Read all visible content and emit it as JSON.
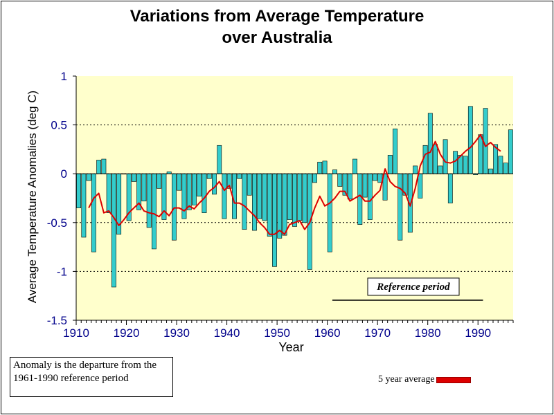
{
  "chart_data": {
    "type": "bar",
    "title": [
      "Variations from Average Temperature",
      "over Australia"
    ],
    "xlabel": "Year",
    "ylabel": "Average Temperature Anomalies (deg C)",
    "xlim": [
      1910,
      1997
    ],
    "ylim": [
      -1.5,
      1
    ],
    "xticks": [
      1910,
      1920,
      1930,
      1940,
      1950,
      1960,
      1970,
      1980,
      1990
    ],
    "xtick_labels": [
      "1910",
      "1920",
      "1930",
      "1940",
      "1950",
      "1960",
      "1970",
      "1980",
      "1990"
    ],
    "yticks": [
      1,
      0.5,
      0,
      -0.5,
      -1,
      -1.5
    ],
    "ytick_labels": [
      "1",
      "0.5",
      "0",
      "-0.5",
      "-1",
      "-1.5"
    ],
    "grid": "horizontal dotted",
    "years": [
      1910,
      1911,
      1912,
      1913,
      1914,
      1915,
      1916,
      1917,
      1918,
      1919,
      1920,
      1921,
      1922,
      1923,
      1924,
      1925,
      1926,
      1927,
      1928,
      1929,
      1930,
      1931,
      1932,
      1933,
      1934,
      1935,
      1936,
      1937,
      1938,
      1939,
      1940,
      1941,
      1942,
      1943,
      1944,
      1945,
      1946,
      1947,
      1948,
      1949,
      1950,
      1951,
      1952,
      1953,
      1954,
      1955,
      1956,
      1957,
      1958,
      1959,
      1960,
      1961,
      1962,
      1963,
      1964,
      1965,
      1966,
      1967,
      1968,
      1969,
      1970,
      1971,
      1972,
      1973,
      1974,
      1975,
      1976,
      1977,
      1978,
      1979,
      1980,
      1981,
      1982,
      1983,
      1984,
      1985,
      1986,
      1987,
      1988,
      1989,
      1990,
      1991,
      1992,
      1993,
      1994,
      1995,
      1996
    ],
    "series": [
      {
        "type": "bar",
        "color": "#33cccc",
        "values": [
          -0.35,
          -0.65,
          -0.07,
          -0.8,
          0.14,
          0.15,
          -0.4,
          -1.16,
          -0.62,
          0.0,
          -0.48,
          -0.08,
          -0.37,
          -0.28,
          -0.55,
          -0.77,
          -0.15,
          -0.47,
          0.02,
          -0.68,
          -0.17,
          -0.46,
          -0.37,
          -0.32,
          -0.23,
          -0.4,
          -0.05,
          -0.21,
          0.29,
          -0.46,
          -0.15,
          -0.46,
          -0.05,
          -0.57,
          -0.22,
          -0.58,
          -0.46,
          -0.48,
          -0.64,
          -0.95,
          -0.66,
          -0.63,
          -0.47,
          -0.54,
          -0.48,
          -0.5,
          -0.98,
          -0.09,
          0.12,
          0.13,
          -0.8,
          0.04,
          -0.13,
          -0.22,
          -0.26,
          0.15,
          -0.52,
          -0.24,
          -0.47,
          -0.07,
          -0.09,
          -0.27,
          0.19,
          0.46,
          -0.68,
          -0.22,
          -0.6,
          0.08,
          -0.25,
          0.29,
          0.62,
          0.3,
          0.08,
          0.35,
          -0.3,
          0.23,
          0.19,
          0.18,
          0.69,
          -0.01,
          0.4,
          0.67,
          0.05,
          0.3,
          0.18,
          0.11,
          0.45
        ]
      },
      {
        "name": "5 year average",
        "type": "line",
        "color": "#dd0000",
        "x": [
          1912,
          1913,
          1914,
          1915,
          1916,
          1917,
          1918,
          1919,
          1920,
          1921,
          1922,
          1923,
          1924,
          1925,
          1926,
          1927,
          1928,
          1929,
          1930,
          1931,
          1932,
          1933,
          1934,
          1935,
          1936,
          1937,
          1938,
          1939,
          1940,
          1941,
          1942,
          1943,
          1944,
          1945,
          1946,
          1947,
          1948,
          1949,
          1950,
          1951,
          1952,
          1953,
          1954,
          1955,
          1956,
          1957,
          1958,
          1959,
          1960,
          1961,
          1962,
          1963,
          1964,
          1965,
          1966,
          1967,
          1968,
          1969,
          1970,
          1971,
          1972,
          1973,
          1974,
          1975,
          1976,
          1977,
          1978,
          1979,
          1980,
          1981,
          1982,
          1983,
          1984,
          1985,
          1986,
          1987,
          1988,
          1989,
          1990,
          1991,
          1992,
          1993,
          1994
        ],
        "values": [
          -0.35,
          -0.25,
          -0.2,
          -0.4,
          -0.38,
          -0.45,
          -0.53,
          -0.47,
          -0.4,
          -0.35,
          -0.3,
          -0.38,
          -0.4,
          -0.41,
          -0.44,
          -0.38,
          -0.43,
          -0.35,
          -0.35,
          -0.38,
          -0.33,
          -0.36,
          -0.3,
          -0.25,
          -0.18,
          -0.14,
          -0.08,
          -0.17,
          -0.12,
          -0.3,
          -0.3,
          -0.33,
          -0.38,
          -0.43,
          -0.5,
          -0.55,
          -0.62,
          -0.62,
          -0.58,
          -0.62,
          -0.52,
          -0.5,
          -0.48,
          -0.57,
          -0.5,
          -0.35,
          -0.23,
          -0.33,
          -0.3,
          -0.25,
          -0.18,
          -0.18,
          -0.28,
          -0.25,
          -0.22,
          -0.28,
          -0.28,
          -0.22,
          -0.17,
          0.05,
          -0.08,
          -0.13,
          -0.15,
          -0.2,
          -0.33,
          -0.15,
          0.08,
          0.2,
          0.22,
          0.33,
          0.2,
          0.12,
          0.11,
          0.13,
          0.18,
          0.23,
          0.27,
          0.33,
          0.4,
          0.28,
          0.32,
          0.27,
          0.23
        ]
      }
    ],
    "annotations": [
      {
        "text": "Reference period",
        "range": [
          1961,
          1990
        ]
      }
    ]
  },
  "note": {
    "line1": "Anomaly is the departure from the",
    "line2": "1961-1990 reference period"
  },
  "legend": {
    "label": "5 year average",
    "color": "#dd0000"
  },
  "colors": {
    "plot_background": "#ffffcc",
    "bar": "#33cccc",
    "axis_text": "#00008b"
  }
}
